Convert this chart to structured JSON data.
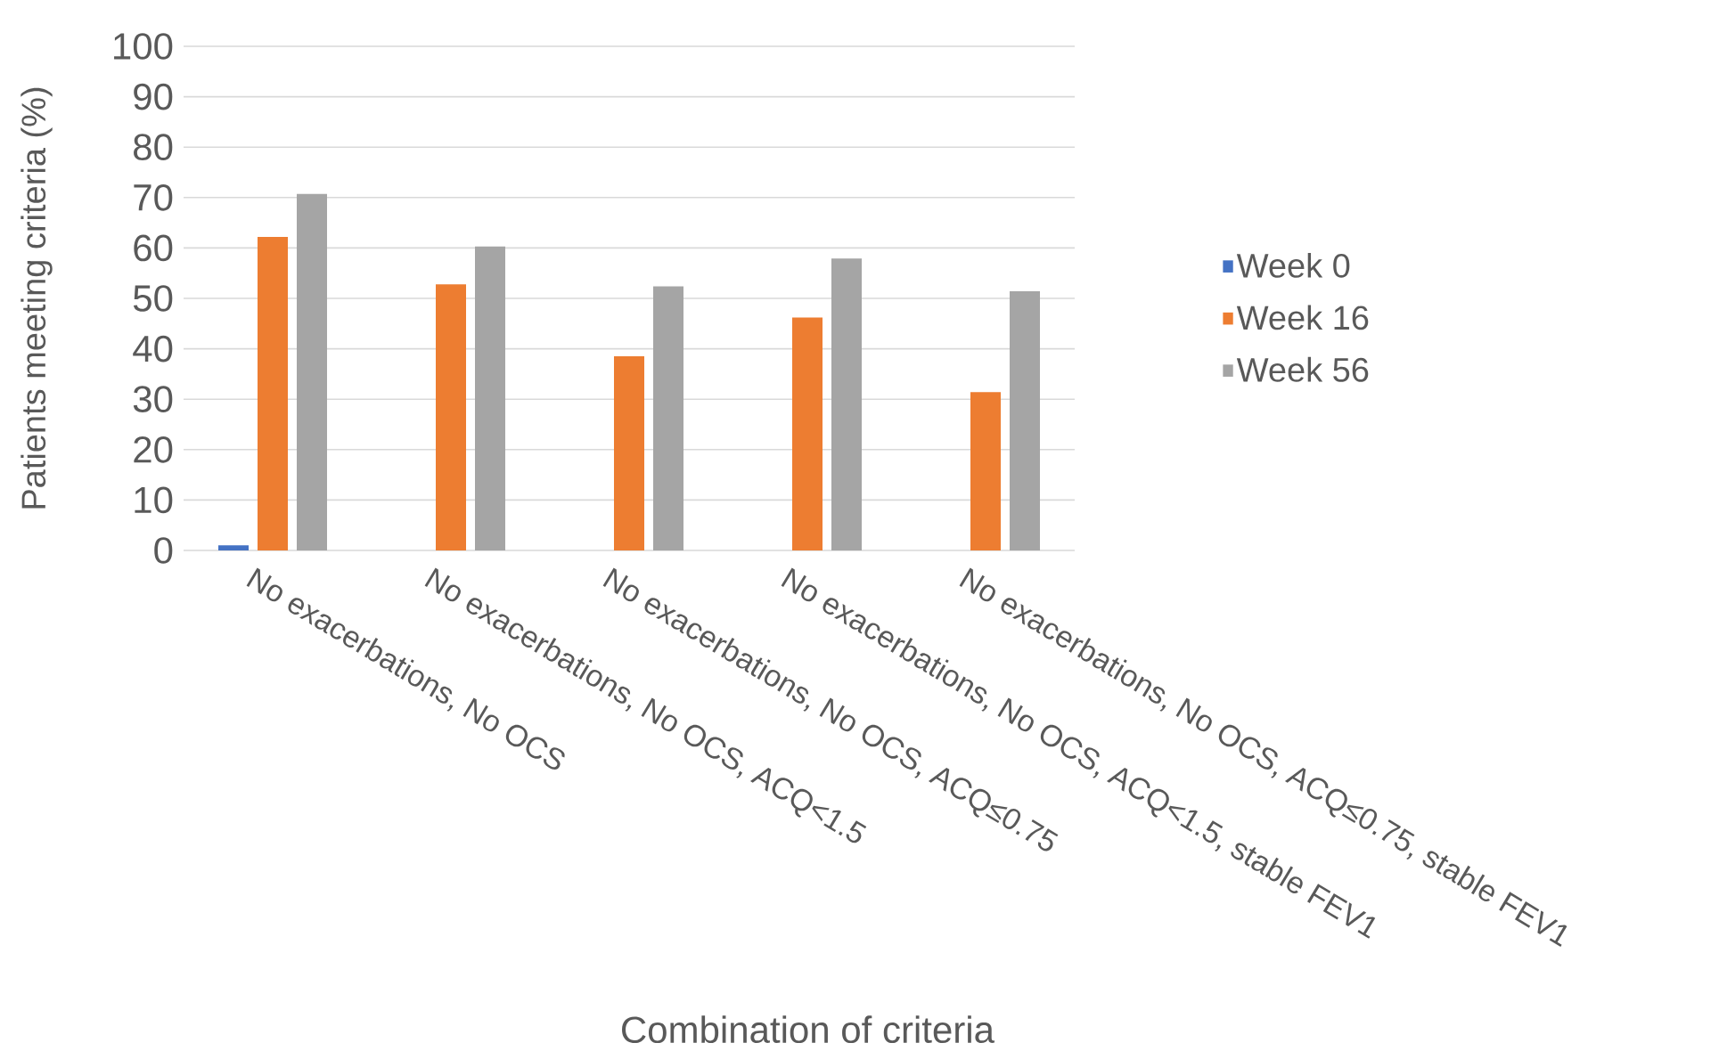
{
  "chart_data": {
    "type": "bar",
    "xlabel": "Combination of criteria",
    "ylabel": "Patients meeting criteria (%)",
    "categories": [
      "No exacerbations, No OCS",
      "No exacerbations, No OCS, ACQ<1.5",
      "No exacerbations, No OCS, ACQ≤0.75",
      "No exacerbations, No OCS, ACQ<1.5, stable FEV1",
      "No exacerbations, No OCS, ACQ≤0.75, stable FEV1"
    ],
    "series": [
      {
        "name": "Week 0",
        "color": "#4472c4",
        "values": [
          1,
          0,
          0,
          0,
          0
        ]
      },
      {
        "name": "Week 16",
        "color": "#ed7d31",
        "values": [
          62.2,
          52.8,
          38.5,
          46.2,
          31.4
        ]
      },
      {
        "name": "Week 56",
        "color": "#a5a5a5",
        "values": [
          70.7,
          60.3,
          52.4,
          57.9,
          51.4
        ]
      }
    ],
    "ylim": [
      0,
      100
    ],
    "yticks": [
      0,
      10,
      20,
      30,
      40,
      50,
      60,
      70,
      80,
      90,
      100
    ],
    "grid": "y",
    "legend": "right"
  }
}
